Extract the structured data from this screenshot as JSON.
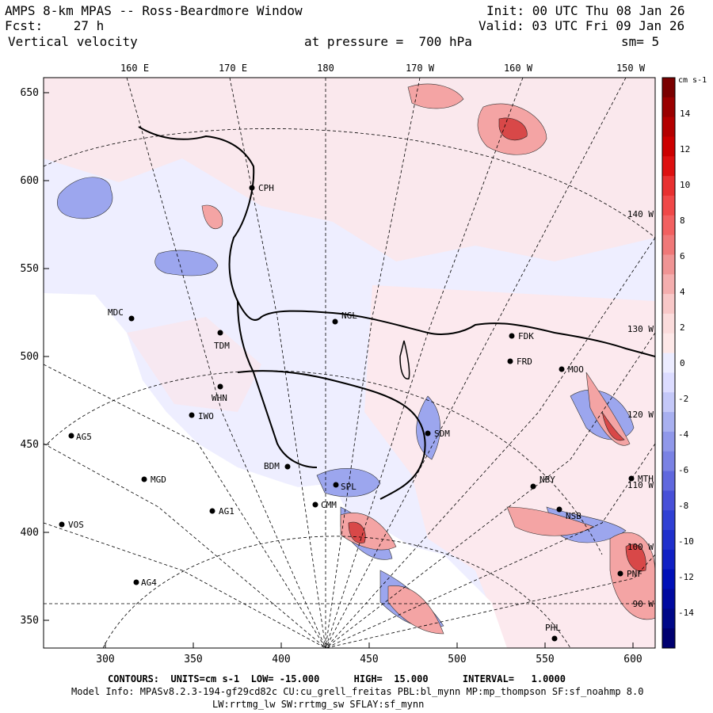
{
  "header": {
    "title": "AMPS 8-km MPAS -- Ross-Beardmore Window",
    "init": "Init: 00 UTC Thu 08 Jan 26",
    "fcst": "Fcst:    27 h",
    "valid": "Valid: 03 UTC Fri 09 Jan 26",
    "field": "Vertical velocity",
    "pressure": "at pressure =  700 hPa",
    "smooth": "sm= 5"
  },
  "axes": {
    "x_ticks": [
      "300",
      "350",
      "400",
      "450",
      "500",
      "550",
      "600"
    ],
    "y_ticks": [
      "650",
      "600",
      "550",
      "500",
      "450",
      "400",
      "350"
    ],
    "top_labels": [
      "160 E",
      "170 E",
      "180",
      "170 W",
      "160 W",
      "150 W"
    ],
    "right_labels": [
      "140 W",
      "130 W",
      "120 W",
      "110 W",
      "100 W",
      "90 W"
    ]
  },
  "colorbar": {
    "unit": "cm s-1",
    "ticks": [
      "14",
      "12",
      "10",
      "8",
      "6",
      "4",
      "2",
      "0",
      "-2",
      "-4",
      "-6",
      "-8",
      "-10",
      "-12",
      "-14"
    ],
    "colors": [
      "#7a0000",
      "#9a0000",
      "#b40000",
      "#cc0000",
      "#dd1010",
      "#e83030",
      "#f04848",
      "#f26060",
      "#f07878",
      "#f09494",
      "#f4aeae",
      "#f8c8c8",
      "#fbdcdc",
      "#fde8e8",
      "#ececff",
      "#dcdcff",
      "#c4c8f8",
      "#a8b0f0",
      "#9098ea",
      "#7a82e4",
      "#6068de",
      "#4850d8",
      "#3040d4",
      "#2030cc",
      "#1020c4",
      "#0010b8",
      "#000aa0",
      "#000888",
      "#000070"
    ]
  },
  "stations": [
    {
      "id": "CPH"
    },
    {
      "id": "MDC"
    },
    {
      "id": "NGL"
    },
    {
      "id": "TDM"
    },
    {
      "id": "FDK"
    },
    {
      "id": "FRD"
    },
    {
      "id": "MOO"
    },
    {
      "id": "WHN"
    },
    {
      "id": "IWO"
    },
    {
      "id": "AG5"
    },
    {
      "id": "SDM"
    },
    {
      "id": "BDM"
    },
    {
      "id": "MGD"
    },
    {
      "id": "SPL"
    },
    {
      "id": "CMM"
    },
    {
      "id": "NBY"
    },
    {
      "id": "MTH"
    },
    {
      "id": "AG1"
    },
    {
      "id": "NSB"
    },
    {
      "id": "VOS"
    },
    {
      "id": "AG4"
    },
    {
      "id": "PNF"
    },
    {
      "id": "PHL"
    }
  ],
  "footer": {
    "contours": "CONTOURS:  UNITS=cm s-1  LOW= -15.000      HIGH=  15.000      INTERVAL=   1.0000",
    "model_info": "Model Info: MPASv8.2.3-194-gf29cd82c CU:cu_grell_freitas PBL:bl_mynn MP:mp_thompson SF:sf_noahmp 8.0",
    "model_info2": "LW:rrtmg_lw SW:rrtmg_sw SFLAY:sf_mynn"
  }
}
